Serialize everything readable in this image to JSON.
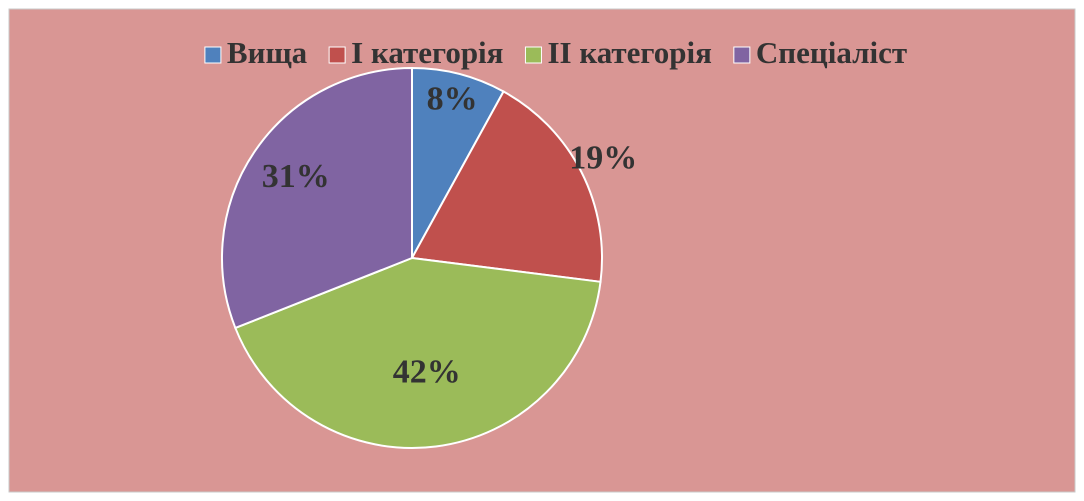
{
  "chart_data": {
    "type": "pie",
    "categories": [
      "Вища",
      "I категорія",
      "II категорія",
      "Спеціаліст"
    ],
    "values": [
      8,
      19,
      42,
      31
    ],
    "value_labels": [
      "8%",
      "19%",
      "42%",
      "31%"
    ],
    "colors": [
      "#4f81bd",
      "#c0504d",
      "#9bbb59",
      "#8064a2"
    ],
    "legend": "top"
  }
}
